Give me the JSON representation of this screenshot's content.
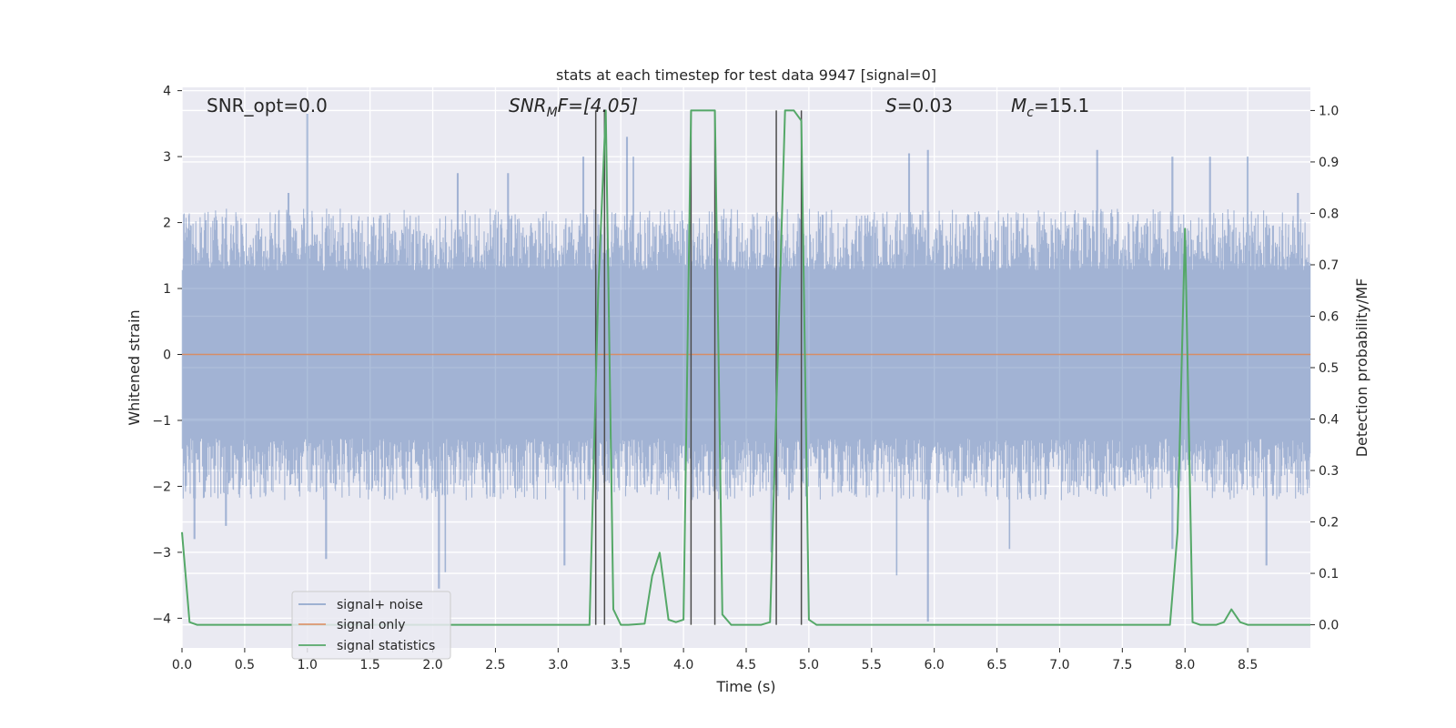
{
  "chart_data": {
    "type": "line",
    "title": "stats at each timestep for test data 9947 [signal=0]",
    "xlabel": "Time (s)",
    "ylabel": "Whitened strain",
    "ylabel_right": "Detection probability/MF",
    "xlim": [
      0.0,
      9.0
    ],
    "ylim": [
      -4.45,
      4.05
    ],
    "ylim_right": [
      -0.045,
      1.045
    ],
    "x_ticks": [
      "0.0",
      "0.5",
      "1.0",
      "1.5",
      "2.0",
      "2.5",
      "3.0",
      "3.5",
      "4.0",
      "4.5",
      "5.0",
      "5.5",
      "6.0",
      "6.5",
      "7.0",
      "7.5",
      "8.0",
      "8.5"
    ],
    "x_tick_values": [
      0.0,
      0.5,
      1.0,
      1.5,
      2.0,
      2.5,
      3.0,
      3.5,
      4.0,
      4.5,
      5.0,
      5.5,
      6.0,
      6.5,
      7.0,
      7.5,
      8.0,
      8.5
    ],
    "y_ticks": [
      "4",
      "3",
      "2",
      "1",
      "0",
      "−1",
      "−2",
      "−3",
      "−4"
    ],
    "y_tick_values": [
      4,
      3,
      2,
      1,
      0,
      -1,
      -2,
      -3,
      -4
    ],
    "y2_ticks": [
      "1.0",
      "0.9",
      "0.8",
      "0.7",
      "0.6",
      "0.5",
      "0.4",
      "0.3",
      "0.2",
      "0.1",
      "0.0"
    ],
    "y2_tick_values": [
      1.0,
      0.9,
      0.8,
      0.7,
      0.6,
      0.5,
      0.4,
      0.3,
      0.2,
      0.1,
      0.0
    ],
    "grid": true,
    "legend_position": "lower-left",
    "annotations": {
      "snr_opt": "SNR_opt=0.0",
      "snr_mf_main": "SNR",
      "snr_mf_sub": "M",
      "snr_mf_rest": "F=[4.05]",
      "s_var": "S",
      "s_rest": "=0.03",
      "mc_var": "M",
      "mc_sub": "c",
      "mc_rest": "=15.1"
    },
    "series": [
      {
        "name": "signal+ noise",
        "color": "#4c72b0",
        "style": "noise band",
        "typical_range": [
          -1.7,
          1.7
        ],
        "peaks": [
          [
            1.0,
            3.65
          ],
          [
            0.85,
            2.45
          ],
          [
            3.55,
            3.3
          ],
          [
            3.2,
            3.0
          ],
          [
            3.6,
            3.0
          ],
          [
            5.8,
            3.05
          ],
          [
            5.95,
            3.1
          ],
          [
            7.3,
            3.1
          ],
          [
            7.9,
            3.0
          ],
          [
            8.2,
            3.0
          ],
          [
            8.5,
            3.0
          ],
          [
            8.9,
            2.45
          ],
          [
            2.2,
            2.75
          ],
          [
            2.6,
            2.75
          ]
        ],
        "troughs": [
          [
            2.05,
            -3.55
          ],
          [
            2.1,
            -3.3
          ],
          [
            3.05,
            -3.2
          ],
          [
            5.95,
            -4.05
          ],
          [
            5.7,
            -3.35
          ],
          [
            8.65,
            -3.2
          ],
          [
            0.35,
            -2.6
          ],
          [
            1.15,
            -3.1
          ],
          [
            4.7,
            -3.0
          ],
          [
            6.6,
            -2.95
          ],
          [
            7.9,
            -2.95
          ],
          [
            0.1,
            -2.8
          ]
        ]
      },
      {
        "name": "signal only",
        "color": "#dd8452",
        "values": [
          [
            0.0,
            0.0
          ],
          [
            9.0,
            0.0
          ]
        ]
      },
      {
        "name": "signal statistics",
        "color": "#55a868",
        "axis": "right",
        "x": [
          0.0,
          0.06,
          0.12,
          0.5,
          1.0,
          1.5,
          2.0,
          2.5,
          3.0,
          3.25,
          3.32,
          3.38,
          3.44,
          3.5,
          3.56,
          3.69,
          3.75,
          3.81,
          3.88,
          3.94,
          4.0,
          4.06,
          4.12,
          4.19,
          4.25,
          4.31,
          4.38,
          4.5,
          4.62,
          4.69,
          4.75,
          4.81,
          4.88,
          4.94,
          5.0,
          5.06,
          5.5,
          6.0,
          6.5,
          7.0,
          7.5,
          7.88,
          7.94,
          8.0,
          8.06,
          8.12,
          8.25,
          8.31,
          8.37,
          8.44,
          8.5,
          9.0
        ],
        "values": [
          0.18,
          0.005,
          0.0,
          0.0,
          0.0,
          0.0,
          0.0,
          0.0,
          0.0,
          0.0,
          0.65,
          1.0,
          0.03,
          0.0,
          0.0,
          0.002,
          0.095,
          0.14,
          0.01,
          0.005,
          0.01,
          1.0,
          1.0,
          1.0,
          1.0,
          0.02,
          0.0,
          0.0,
          0.0,
          0.005,
          0.5,
          1.0,
          1.0,
          0.98,
          0.01,
          0.0,
          0.0,
          0.0,
          0.0,
          0.0,
          0.0,
          0.0,
          0.18,
          0.77,
          0.005,
          0.0,
          0.0,
          0.005,
          0.03,
          0.005,
          0.0,
          0.0
        ]
      }
    ],
    "vertical_markers": [
      3.3,
      3.37,
      4.06,
      4.25,
      4.74,
      4.94
    ]
  }
}
